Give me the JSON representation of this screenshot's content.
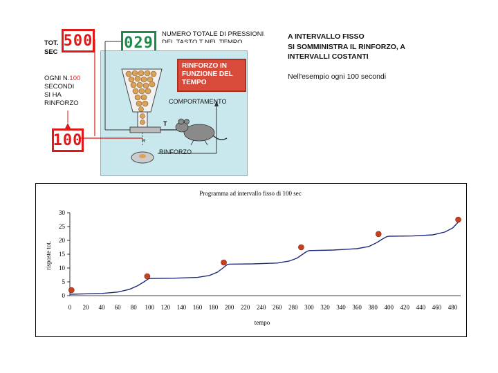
{
  "top_diagram": {
    "tot_label": "Tot.",
    "sec_label": "SEC",
    "sec_counter": "500",
    "press_counter": "029",
    "press_caption_line1": "NUMERO TOTALE DI PRESSIONI",
    "press_caption_line2": "DEL TASTO T NEL TEMPO",
    "ogni_line1_prefix": "OGNI N.",
    "ogni_number": "100",
    "ogni_line2": "SECONDI",
    "ogni_line3": "SI HA",
    "ogni_line4": "RINFORZO",
    "interval_counter": "100",
    "red_box_text": "RINFORZO IN FUNZIONE DEL TEMPO",
    "comportamento_label": "COMPORTAMENTO",
    "t_label": "T",
    "r_label": "R",
    "rinforzo_label": "RINFORZO"
  },
  "right_text": {
    "title": "A INTERVALLO FISSO",
    "line2": "SI SOMMINISTRA IL RINFORZO, A",
    "line3": "INTERVALLI COSTANTI",
    "example": "Nell'esempio ogni 100 secondi"
  },
  "colors": {
    "accent_red": "#e01818",
    "counter_green": "#1d8a4a",
    "panel_sky": "#c9e8ee",
    "curve_blue": "#1f2a78",
    "marker_red": "#c8401e"
  },
  "chart_data": {
    "type": "line",
    "title": "Programma ad intervallo fisso di 100 sec",
    "xlabel": "tempo",
    "ylabel": "risposte tot.",
    "xlim": [
      0,
      490
    ],
    "ylim": [
      0,
      30
    ],
    "x_ticks": [
      0,
      20,
      40,
      60,
      80,
      100,
      120,
      140,
      160,
      180,
      200,
      220,
      240,
      260,
      280,
      300,
      320,
      340,
      360,
      380,
      400,
      420,
      440,
      460,
      480
    ],
    "y_ticks": [
      0,
      5,
      10,
      15,
      20,
      25,
      30
    ],
    "grid": false,
    "series": [
      {
        "values_x": [
          0,
          40,
          60,
          75,
          85,
          93,
          98,
          100,
          130,
          160,
          175,
          185,
          192,
          197,
          200,
          230,
          260,
          275,
          285,
          292,
          297,
          300,
          330,
          360,
          375,
          385,
          392,
          397,
          400,
          430,
          455,
          470,
          480,
          490
        ],
        "values_y": [
          0.5,
          0.8,
          1.3,
          2.3,
          3.6,
          5.0,
          6.0,
          6.2,
          6.3,
          6.6,
          7.3,
          8.5,
          10.0,
          11.2,
          11.4,
          11.5,
          11.8,
          12.5,
          13.6,
          15.0,
          16.0,
          16.3,
          16.5,
          17.0,
          17.8,
          19.2,
          20.5,
          21.3,
          21.5,
          21.6,
          22.0,
          23.0,
          24.5,
          27.5
        ]
      }
    ],
    "reinforcement_points": {
      "x": [
        2,
        97,
        193,
        290,
        387,
        487
      ],
      "y": [
        2,
        7,
        12,
        17.5,
        22.3,
        27.5
      ]
    }
  }
}
